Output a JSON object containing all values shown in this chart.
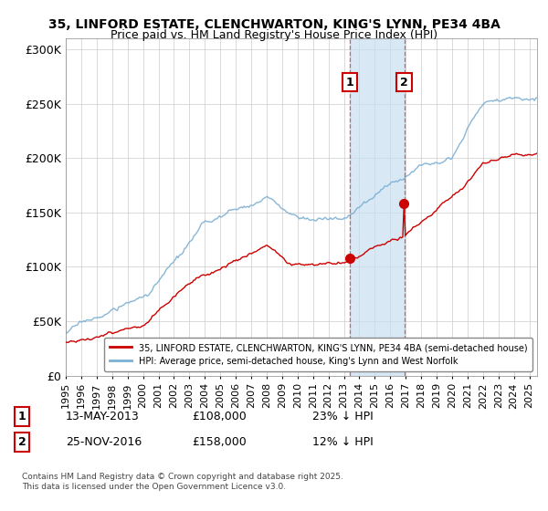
{
  "title_line1": "35, LINFORD ESTATE, CLENCHWARTON, KING'S LYNN, PE34 4BA",
  "title_line2": "Price paid vs. HM Land Registry's House Price Index (HPI)",
  "ylim": [
    0,
    310000
  ],
  "ytick_labels": [
    "£0",
    "£50K",
    "£100K",
    "£150K",
    "£200K",
    "£250K",
    "£300K"
  ],
  "ytick_values": [
    0,
    50000,
    100000,
    150000,
    200000,
    250000,
    300000
  ],
  "hpi_color": "#7bafd4",
  "hpi_shade_color": "#c8dff0",
  "price_color": "#cc0000",
  "sale1_date": 2013.37,
  "sale1_price": 108000,
  "sale2_date": 2016.9,
  "sale2_price": 158000,
  "legend_price_label": "35, LINFORD ESTATE, CLENCHWARTON, KING'S LYNN, PE34 4BA (semi-detached house)",
  "legend_hpi_label": "HPI: Average price, semi-detached house, King's Lynn and West Norfolk",
  "annotation1_date": "13-MAY-2013",
  "annotation1_price": "£108,000",
  "annotation1_hpi": "23% ↓ HPI",
  "annotation2_date": "25-NOV-2016",
  "annotation2_price": "£158,000",
  "annotation2_hpi": "12% ↓ HPI",
  "footer": "Contains HM Land Registry data © Crown copyright and database right 2025.\nThis data is licensed under the Open Government Licence v3.0.",
  "background_color": "#ffffff",
  "grid_color": "#cccccc"
}
